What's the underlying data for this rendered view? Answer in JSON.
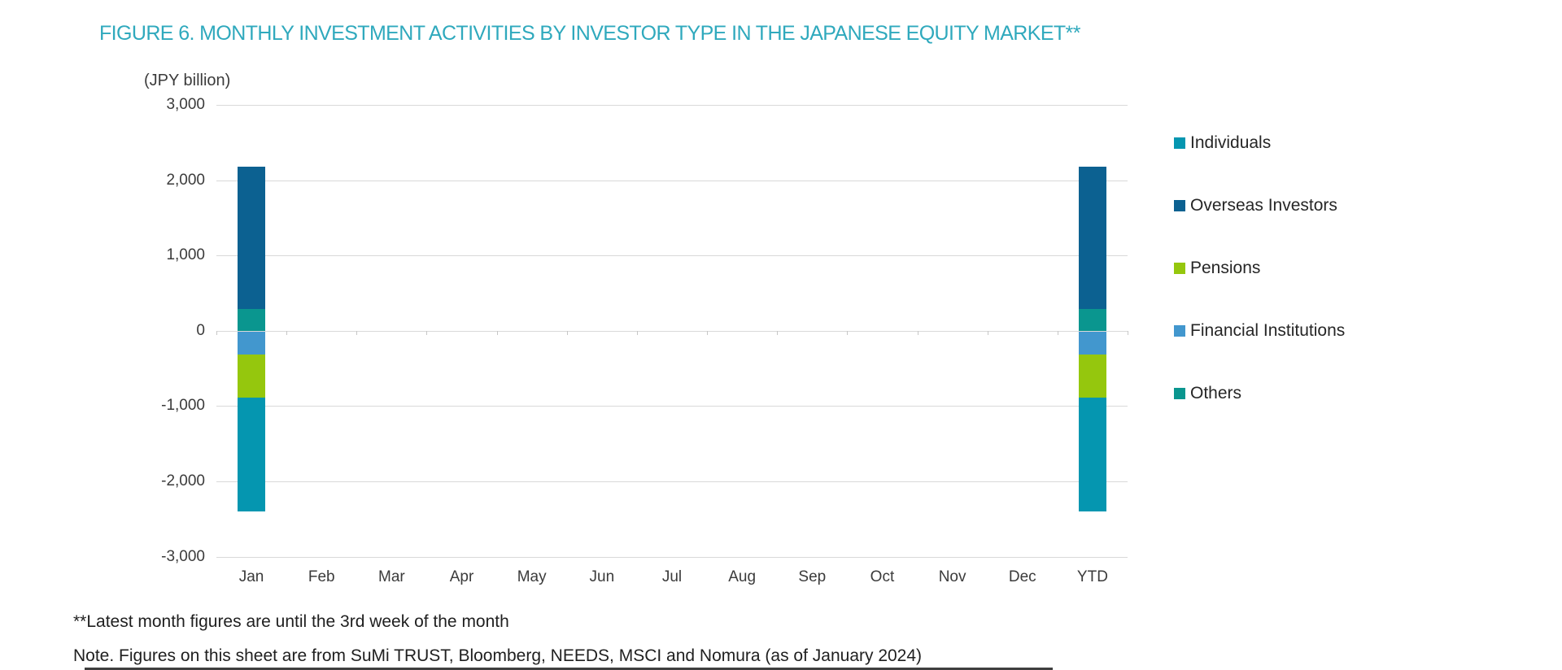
{
  "figure": {
    "title": "FIGURE 6. MONTHLY INVESTMENT ACTIVITIES BY INVESTOR TYPE IN THE JAPANESE EQUITY MARKET**",
    "unit_label": "(JPY billion)"
  },
  "chart_data": {
    "type": "bar",
    "stacked": true,
    "title": "FIGURE 6. MONTHLY INVESTMENT ACTIVITIES BY INVESTOR TYPE IN THE JAPANESE EQUITY MARKET**",
    "ylabel": "(JPY billion)",
    "categories": [
      "Jan",
      "Feb",
      "Mar",
      "Apr",
      "May",
      "Jun",
      "Jul",
      "Aug",
      "Sep",
      "Oct",
      "Nov",
      "Dec",
      "YTD"
    ],
    "series": [
      {
        "name": "Individuals",
        "color": "#0596B0",
        "values": [
          -1510,
          0,
          0,
          0,
          0,
          0,
          0,
          0,
          0,
          0,
          0,
          0,
          -1510
        ]
      },
      {
        "name": "Overseas Investors",
        "color": "#0C6191",
        "values": [
          1890,
          0,
          0,
          0,
          0,
          0,
          0,
          0,
          0,
          0,
          0,
          0,
          1890
        ]
      },
      {
        "name": "Pensions",
        "color": "#95C70D",
        "values": [
          -570,
          0,
          0,
          0,
          0,
          0,
          0,
          0,
          0,
          0,
          0,
          0,
          -570
        ]
      },
      {
        "name": "Financial Institutions",
        "color": "#4297CE",
        "values": [
          -320,
          0,
          0,
          0,
          0,
          0,
          0,
          0,
          0,
          0,
          0,
          0,
          -320
        ]
      },
      {
        "name": "Others",
        "color": "#0A968F",
        "values": [
          290,
          0,
          0,
          0,
          0,
          0,
          0,
          0,
          0,
          0,
          0,
          0,
          290
        ]
      }
    ],
    "stack_order": [
      "Others",
      "Financial Institutions",
      "Pensions",
      "Overseas Investors",
      "Individuals"
    ],
    "ylim": [
      -3000,
      3000
    ],
    "ytick_interval": 1000,
    "ytick_labels": [
      "3,000",
      "2,000",
      "1,000",
      "0",
      "-1,000",
      "-2,000",
      "-3,000"
    ],
    "grid": true,
    "legend_position": "right"
  },
  "footnotes": {
    "line1": "**Latest month figures are until the 3rd week of the month",
    "line2": "Note. Figures on this sheet are from SuMi TRUST, Bloomberg, NEEDS, MSCI and Nomura (as of January 2024)"
  },
  "colors": {
    "title_text": "#2FA9BD",
    "axis_text": "#3B3B3B",
    "footnote_text": "#1F1F1F",
    "gridline": "#D9D9D9",
    "axis_tick": "#C6C6C6"
  }
}
